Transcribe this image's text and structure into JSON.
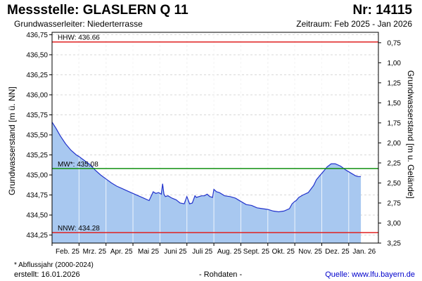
{
  "header": {
    "title": "Messstelle: GLASLERN Q 11",
    "station_number": "Nr: 14115",
    "aquifer": "Grundwasserleiter:   Niederterrasse",
    "period": "Zeitraum: Feb 2025 - Jan 2026"
  },
  "footer": {
    "footnote": "* Abflussjahr (2000-2024)",
    "created": "erstellt:  16.01.2026",
    "raw_data": "- Rohdaten -",
    "source": "Quelle:  www.lfu.bayern.de"
  },
  "chart_data": {
    "type": "area",
    "title": "Messstelle: GLASLERN Q 11",
    "ylabel": "Grundwasserstand [m ü. NN]",
    "ylabel_right": "Grundwasserstand [m u. Gelände]",
    "ylim": [
      434.15,
      436.78
    ],
    "ylim_right": [
      3.25,
      0.62
    ],
    "yticks": [
      "436,75",
      "436,50",
      "436,25",
      "436,00",
      "435,75",
      "435,50",
      "435,25",
      "435,00",
      "434,75",
      "434,50",
      "434,25"
    ],
    "yticks_values": [
      436.75,
      436.5,
      436.25,
      436.0,
      435.75,
      435.5,
      435.25,
      435.0,
      434.75,
      434.5,
      434.25
    ],
    "yticks_right": [
      "0,75",
      "1,00",
      "1,25",
      "1,50",
      "1,75",
      "2,00",
      "2,25",
      "2,50",
      "2,75",
      "3,00",
      "3,25"
    ],
    "yticks_right_values": [
      0.75,
      1.0,
      1.25,
      1.5,
      1.75,
      2.0,
      2.25,
      2.5,
      2.75,
      3.0,
      3.25
    ],
    "x_months": [
      "Feb. 25",
      "Mrz. 25",
      "Apr. 25",
      "Mai 25",
      "Juni 25",
      "Juli 25",
      "Aug. 25",
      "Sept. 25",
      "Okt. 25",
      "Nov. 25",
      "Dez. 25",
      "Jan. 26"
    ],
    "x_month_index": [
      0,
      1,
      2,
      3,
      4,
      5,
      6,
      7,
      8,
      9,
      10,
      11
    ],
    "xlim": [
      0,
      12.1
    ],
    "grid": true,
    "area_color": "#a8c8f0",
    "line_color": "#2233cc",
    "reference_lines": [
      {
        "label": "HHW: 436.66",
        "value": 436.66,
        "color": "#e02020"
      },
      {
        "label": "MW*: 435.08",
        "value": 435.08,
        "color": "#109010"
      },
      {
        "label": "NNW: 434.28",
        "value": 434.28,
        "color": "#e02020"
      }
    ],
    "series": [
      {
        "x": [
          0,
          0.15,
          0.3,
          0.5,
          0.7,
          0.9,
          1.0,
          1.2,
          1.4,
          1.6,
          1.8,
          2.0,
          2.2,
          2.4,
          2.6,
          2.8,
          3.0,
          3.2,
          3.4,
          3.6,
          3.75,
          3.85,
          3.95,
          4.05,
          4.1,
          4.15,
          4.2,
          4.3,
          4.45,
          4.6,
          4.75,
          4.9,
          5.0,
          5.1,
          5.2,
          5.3,
          5.35,
          5.45,
          5.55,
          5.65,
          5.75,
          5.85,
          5.95,
          6.0,
          6.1,
          6.2,
          6.4,
          6.6,
          6.8,
          7.0,
          7.2,
          7.4,
          7.6,
          7.8,
          8.0,
          8.2,
          8.4,
          8.6,
          8.8,
          8.9,
          9.0,
          9.05,
          9.15,
          9.3,
          9.5,
          9.7,
          9.8,
          9.9,
          10.0,
          10.1,
          10.2,
          10.35,
          10.5,
          10.7,
          10.9,
          11.1,
          11.25,
          11.35,
          11.45
        ],
        "y": [
          435.66,
          435.58,
          435.49,
          435.39,
          435.31,
          435.25,
          435.23,
          435.18,
          435.13,
          435.06,
          435.0,
          434.95,
          434.9,
          434.86,
          434.83,
          434.8,
          434.77,
          434.74,
          434.71,
          434.68,
          434.79,
          434.77,
          434.78,
          434.76,
          434.89,
          434.76,
          434.73,
          434.74,
          434.71,
          434.69,
          434.65,
          434.64,
          434.73,
          434.64,
          434.65,
          434.74,
          434.72,
          434.73,
          434.74,
          434.74,
          434.76,
          434.73,
          434.72,
          434.82,
          434.79,
          434.78,
          434.74,
          434.73,
          434.71,
          434.67,
          434.63,
          434.62,
          434.59,
          434.58,
          434.57,
          434.55,
          434.54,
          434.55,
          434.58,
          434.64,
          434.67,
          434.68,
          434.72,
          434.75,
          434.78,
          434.87,
          434.94,
          434.98,
          435.02,
          435.06,
          435.1,
          435.14,
          435.14,
          435.11,
          435.06,
          435.02,
          434.99,
          434.98,
          434.98
        ]
      }
    ]
  }
}
